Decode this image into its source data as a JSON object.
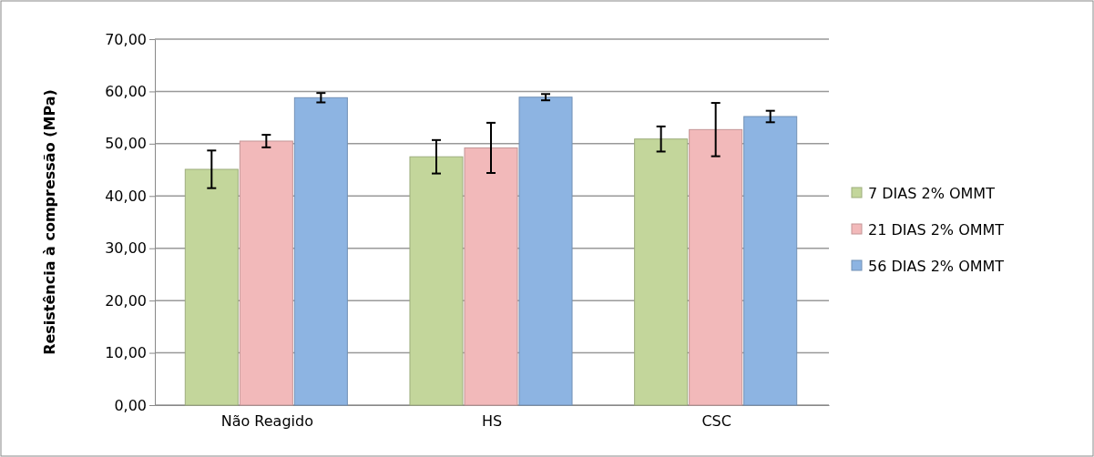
{
  "chart_data": {
    "type": "bar",
    "ylabel": "Resistência à compressão (MPa)",
    "categories": [
      "Não Reagido",
      "HS",
      "CSC"
    ],
    "series": [
      {
        "name": "7 DIAS 2% OMMT",
        "color": "#c3d69b",
        "values": [
          45.1,
          47.5,
          50.9
        ],
        "errors": [
          3.6,
          3.2,
          2.4
        ]
      },
      {
        "name": "21 DIAS 2% OMMT",
        "color": "#f2b9ba",
        "values": [
          50.5,
          49.2,
          52.7
        ],
        "errors": [
          1.2,
          4.8,
          5.1
        ]
      },
      {
        "name": "56 DIAS 2% OMMT",
        "color": "#8db4e2",
        "values": [
          58.8,
          58.9,
          55.2
        ],
        "errors": [
          0.9,
          0.6,
          1.1
        ]
      }
    ],
    "ylim": [
      0,
      70
    ],
    "yticks": [
      {
        "value": 0,
        "label": "0,00"
      },
      {
        "value": 10,
        "label": "10,00"
      },
      {
        "value": 20,
        "label": "20,00"
      },
      {
        "value": 30,
        "label": "30,00"
      },
      {
        "value": 40,
        "label": "40,00"
      },
      {
        "value": 50,
        "label": "50,00"
      },
      {
        "value": 60,
        "label": "60,00"
      },
      {
        "value": 70,
        "label": "70,00"
      }
    ],
    "grid": "y",
    "legend": "right"
  }
}
